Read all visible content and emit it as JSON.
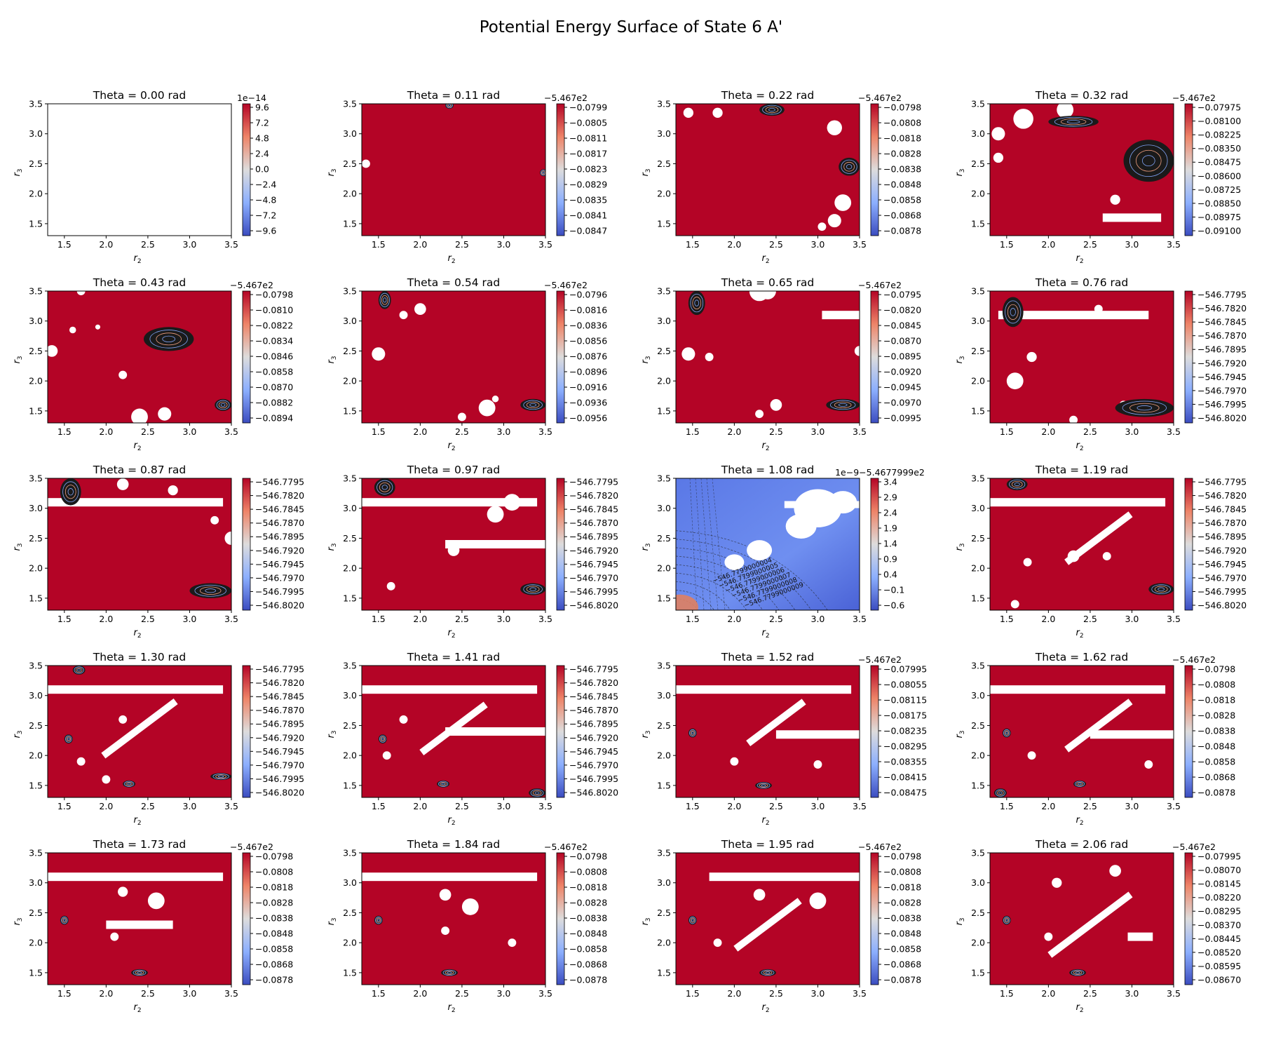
{
  "figure": {
    "title": "Potential Energy Surface of State 6 A'"
  },
  "chart_data": [
    {
      "type": "heatmap",
      "title": "Theta = 0.00 rad",
      "xlabel": "r",
      "xlabel_sub": "2",
      "ylabel": "r",
      "ylabel_sub": "3",
      "xlim": [
        1.3,
        3.5
      ],
      "ylim": [
        1.3,
        3.5
      ],
      "xticks": [
        "1.5",
        "2.0",
        "2.5",
        "3.0",
        "3.5"
      ],
      "yticks": [
        "1.5",
        "2.0",
        "2.5",
        "3.0",
        "3.5"
      ],
      "colorbar": {
        "offset": "1e−14",
        "ticks": [
          "9.6",
          "7.2",
          "4.8",
          "2.4",
          "0.0",
          "−2.4",
          "−4.8",
          "−7.2",
          "−9.6"
        ]
      },
      "fill": "empty",
      "features": []
    },
    {
      "type": "heatmap",
      "title": "Theta = 0.11 rad",
      "xlabel": "r",
      "xlabel_sub": "2",
      "ylabel": "r",
      "ylabel_sub": "3",
      "xlim": [
        1.3,
        3.5
      ],
      "ylim": [
        1.3,
        3.5
      ],
      "xticks": [
        "1.5",
        "2.0",
        "2.5",
        "3.0",
        "3.5"
      ],
      "yticks": [
        "1.5",
        "2.0",
        "2.5",
        "3.0",
        "3.5"
      ],
      "colorbar": {
        "offset": "−5.467e2",
        "ticks": [
          "−0.0799",
          "−0.0805",
          "−0.0811",
          "−0.0817",
          "−0.0823",
          "−0.0829",
          "−0.0835",
          "−0.0841",
          "−0.0847"
        ]
      },
      "fill": "red",
      "features": []
    },
    {
      "type": "heatmap",
      "title": "Theta = 0.22 rad",
      "xlabel": "r",
      "xlabel_sub": "2",
      "ylabel": "r",
      "ylabel_sub": "3",
      "xlim": [
        1.3,
        3.5
      ],
      "ylim": [
        1.3,
        3.5
      ],
      "xticks": [
        "1.5",
        "2.0",
        "2.5",
        "3.0",
        "3.5"
      ],
      "yticks": [
        "1.5",
        "2.0",
        "2.5",
        "3.0",
        "3.5"
      ],
      "colorbar": {
        "offset": "−5.467e2",
        "ticks": [
          "−0.0798",
          "−0.0808",
          "−0.0818",
          "−0.0828",
          "−0.0838",
          "−0.0848",
          "−0.0858",
          "−0.0868",
          "−0.0878"
        ]
      },
      "fill": "red",
      "features": []
    },
    {
      "type": "heatmap",
      "title": "Theta = 0.32 rad",
      "xlabel": "r",
      "xlabel_sub": "2",
      "ylabel": "r",
      "ylabel_sub": "3",
      "xlim": [
        1.3,
        3.5
      ],
      "ylim": [
        1.3,
        3.5
      ],
      "xticks": [
        "1.5",
        "2.0",
        "2.5",
        "3.0",
        "3.5"
      ],
      "yticks": [
        "1.5",
        "2.0",
        "2.5",
        "3.0",
        "3.5"
      ],
      "colorbar": {
        "offset": "−5.467e2",
        "ticks": [
          "−0.07975",
          "−0.08100",
          "−0.08225",
          "−0.08350",
          "−0.08475",
          "−0.08600",
          "−0.08725",
          "−0.08850",
          "−0.08975",
          "−0.09100"
        ]
      },
      "fill": "red",
      "features": []
    },
    {
      "type": "heatmap",
      "title": "Theta = 0.43 rad",
      "xlabel": "r",
      "xlabel_sub": "2",
      "ylabel": "r",
      "ylabel_sub": "3",
      "xlim": [
        1.3,
        3.5
      ],
      "ylim": [
        1.3,
        3.5
      ],
      "xticks": [
        "1.5",
        "2.0",
        "2.5",
        "3.0",
        "3.5"
      ],
      "yticks": [
        "1.5",
        "2.0",
        "2.5",
        "3.0",
        "3.5"
      ],
      "colorbar": {
        "offset": "−5.467e2",
        "ticks": [
          "−0.0798",
          "−0.0810",
          "−0.0822",
          "−0.0834",
          "−0.0846",
          "−0.0858",
          "−0.0870",
          "−0.0882",
          "−0.0894"
        ]
      },
      "fill": "red",
      "features": []
    },
    {
      "type": "heatmap",
      "title": "Theta = 0.54 rad",
      "xlabel": "r",
      "xlabel_sub": "2",
      "ylabel": "r",
      "ylabel_sub": "3",
      "xlim": [
        1.3,
        3.5
      ],
      "ylim": [
        1.3,
        3.5
      ],
      "xticks": [
        "1.5",
        "2.0",
        "2.5",
        "3.0",
        "3.5"
      ],
      "yticks": [
        "1.5",
        "2.0",
        "2.5",
        "3.0",
        "3.5"
      ],
      "colorbar": {
        "offset": "−5.467e2",
        "ticks": [
          "−0.0796",
          "−0.0816",
          "−0.0836",
          "−0.0856",
          "−0.0876",
          "−0.0896",
          "−0.0916",
          "−0.0936",
          "−0.0956"
        ]
      },
      "fill": "red",
      "features": []
    },
    {
      "type": "heatmap",
      "title": "Theta = 0.65 rad",
      "xlabel": "r",
      "xlabel_sub": "2",
      "ylabel": "r",
      "ylabel_sub": "3",
      "xlim": [
        1.3,
        3.5
      ],
      "ylim": [
        1.3,
        3.5
      ],
      "xticks": [
        "1.5",
        "2.0",
        "2.5",
        "3.0",
        "3.5"
      ],
      "yticks": [
        "1.5",
        "2.0",
        "2.5",
        "3.0",
        "3.5"
      ],
      "colorbar": {
        "offset": "−5.467e2",
        "ticks": [
          "−0.0795",
          "−0.0820",
          "−0.0845",
          "−0.0870",
          "−0.0895",
          "−0.0920",
          "−0.0945",
          "−0.0970",
          "−0.0995"
        ]
      },
      "fill": "red",
      "features": []
    },
    {
      "type": "heatmap",
      "title": "Theta = 0.76 rad",
      "xlabel": "r",
      "xlabel_sub": "2",
      "ylabel": "r",
      "ylabel_sub": "3",
      "xlim": [
        1.3,
        3.5
      ],
      "ylim": [
        1.3,
        3.5
      ],
      "xticks": [
        "1.5",
        "2.0",
        "2.5",
        "3.0",
        "3.5"
      ],
      "yticks": [
        "1.5",
        "2.0",
        "2.5",
        "3.0",
        "3.5"
      ],
      "colorbar": {
        "offset": "",
        "ticks": [
          "−546.7795",
          "−546.7820",
          "−546.7845",
          "−546.7870",
          "−546.7895",
          "−546.7920",
          "−546.7945",
          "−546.7970",
          "−546.7995",
          "−546.8020"
        ]
      },
      "fill": "red",
      "features": []
    },
    {
      "type": "heatmap",
      "title": "Theta = 0.87 rad",
      "xlabel": "r",
      "xlabel_sub": "2",
      "ylabel": "r",
      "ylabel_sub": "3",
      "xlim": [
        1.3,
        3.5
      ],
      "ylim": [
        1.3,
        3.5
      ],
      "xticks": [
        "1.5",
        "2.0",
        "2.5",
        "3.0",
        "3.5"
      ],
      "yticks": [
        "1.5",
        "2.0",
        "2.5",
        "3.0",
        "3.5"
      ],
      "colorbar": {
        "offset": "",
        "ticks": [
          "−546.7795",
          "−546.7820",
          "−546.7845",
          "−546.7870",
          "−546.7895",
          "−546.7920",
          "−546.7945",
          "−546.7970",
          "−546.7995",
          "−546.8020"
        ]
      },
      "fill": "red",
      "features": []
    },
    {
      "type": "heatmap",
      "title": "Theta = 0.97 rad",
      "xlabel": "r",
      "xlabel_sub": "2",
      "ylabel": "r",
      "ylabel_sub": "3",
      "xlim": [
        1.3,
        3.5
      ],
      "ylim": [
        1.3,
        3.5
      ],
      "xticks": [
        "1.5",
        "2.0",
        "2.5",
        "3.0",
        "3.5"
      ],
      "yticks": [
        "1.5",
        "2.0",
        "2.5",
        "3.0",
        "3.5"
      ],
      "colorbar": {
        "offset": "",
        "ticks": [
          "−546.7795",
          "−546.7820",
          "−546.7845",
          "−546.7870",
          "−546.7895",
          "−546.7920",
          "−546.7945",
          "−546.7970",
          "−546.7995",
          "−546.8020"
        ]
      },
      "fill": "red",
      "features": []
    },
    {
      "type": "heatmap",
      "title": "Theta = 1.08 rad",
      "xlabel": "r",
      "xlabel_sub": "2",
      "ylabel": "r",
      "ylabel_sub": "3",
      "xlim": [
        1.3,
        3.5
      ],
      "ylim": [
        1.3,
        3.5
      ],
      "xticks": [
        "1.5",
        "2.0",
        "2.5",
        "3.0",
        "3.5"
      ],
      "yticks": [
        "1.5",
        "2.0",
        "2.5",
        "3.0",
        "3.5"
      ],
      "colorbar": {
        "offset": "1e−9−5.4677999e2",
        "ticks": [
          "3.4",
          "2.9",
          "2.4",
          "1.9",
          "1.4",
          "0.9",
          "0.4",
          "−0.1",
          "−0.6"
        ]
      },
      "fill": "blue",
      "contour_labels": [
        "−546.7799000004",
        "−546.7799000005",
        "−546.7799000006",
        "−546.7799000007",
        "−546.7799000008",
        "−546.7799000009"
      ],
      "features": []
    },
    {
      "type": "heatmap",
      "title": "Theta = 1.19 rad",
      "xlabel": "r",
      "xlabel_sub": "2",
      "ylabel": "r",
      "ylabel_sub": "3",
      "xlim": [
        1.3,
        3.5
      ],
      "ylim": [
        1.3,
        3.5
      ],
      "xticks": [
        "1.5",
        "2.0",
        "2.5",
        "3.0",
        "3.5"
      ],
      "yticks": [
        "1.5",
        "2.0",
        "2.5",
        "3.0",
        "3.5"
      ],
      "colorbar": {
        "offset": "",
        "ticks": [
          "−546.7795",
          "−546.7820",
          "−546.7845",
          "−546.7870",
          "−546.7895",
          "−546.7920",
          "−546.7945",
          "−546.7970",
          "−546.7995",
          "−546.8020"
        ]
      },
      "fill": "red",
      "features": []
    },
    {
      "type": "heatmap",
      "title": "Theta = 1.30 rad",
      "xlabel": "r",
      "xlabel_sub": "2",
      "ylabel": "r",
      "ylabel_sub": "3",
      "xlim": [
        1.3,
        3.5
      ],
      "ylim": [
        1.3,
        3.5
      ],
      "xticks": [
        "1.5",
        "2.0",
        "2.5",
        "3.0",
        "3.5"
      ],
      "yticks": [
        "1.5",
        "2.0",
        "2.5",
        "3.0",
        "3.5"
      ],
      "colorbar": {
        "offset": "",
        "ticks": [
          "−546.7795",
          "−546.7820",
          "−546.7845",
          "−546.7870",
          "−546.7895",
          "−546.7920",
          "−546.7945",
          "−546.7970",
          "−546.7995",
          "−546.8020"
        ]
      },
      "fill": "red",
      "features": []
    },
    {
      "type": "heatmap",
      "title": "Theta = 1.41 rad",
      "xlabel": "r",
      "xlabel_sub": "2",
      "ylabel": "r",
      "ylabel_sub": "3",
      "xlim": [
        1.3,
        3.5
      ],
      "ylim": [
        1.3,
        3.5
      ],
      "xticks": [
        "1.5",
        "2.0",
        "2.5",
        "3.0",
        "3.5"
      ],
      "yticks": [
        "1.5",
        "2.0",
        "2.5",
        "3.0",
        "3.5"
      ],
      "colorbar": {
        "offset": "",
        "ticks": [
          "−546.7795",
          "−546.7820",
          "−546.7845",
          "−546.7870",
          "−546.7895",
          "−546.7920",
          "−546.7945",
          "−546.7970",
          "−546.7995",
          "−546.8020"
        ]
      },
      "fill": "red",
      "features": []
    },
    {
      "type": "heatmap",
      "title": "Theta = 1.52 rad",
      "xlabel": "r",
      "xlabel_sub": "2",
      "ylabel": "r",
      "ylabel_sub": "3",
      "xlim": [
        1.3,
        3.5
      ],
      "ylim": [
        1.3,
        3.5
      ],
      "xticks": [
        "1.5",
        "2.0",
        "2.5",
        "3.0",
        "3.5"
      ],
      "yticks": [
        "1.5",
        "2.0",
        "2.5",
        "3.0",
        "3.5"
      ],
      "colorbar": {
        "offset": "−5.467e2",
        "ticks": [
          "−0.07995",
          "−0.08055",
          "−0.08115",
          "−0.08175",
          "−0.08235",
          "−0.08295",
          "−0.08355",
          "−0.08415",
          "−0.08475"
        ]
      },
      "fill": "red",
      "features": []
    },
    {
      "type": "heatmap",
      "title": "Theta = 1.62 rad",
      "xlabel": "r",
      "xlabel_sub": "2",
      "ylabel": "r",
      "ylabel_sub": "3",
      "xlim": [
        1.3,
        3.5
      ],
      "ylim": [
        1.3,
        3.5
      ],
      "xticks": [
        "1.5",
        "2.0",
        "2.5",
        "3.0",
        "3.5"
      ],
      "yticks": [
        "1.5",
        "2.0",
        "2.5",
        "3.0",
        "3.5"
      ],
      "colorbar": {
        "offset": "−5.467e2",
        "ticks": [
          "−0.0798",
          "−0.0808",
          "−0.0818",
          "−0.0828",
          "−0.0838",
          "−0.0848",
          "−0.0858",
          "−0.0868",
          "−0.0878"
        ]
      },
      "fill": "red",
      "features": []
    },
    {
      "type": "heatmap",
      "title": "Theta = 1.73 rad",
      "xlabel": "r",
      "xlabel_sub": "2",
      "ylabel": "r",
      "ylabel_sub": "3",
      "xlim": [
        1.3,
        3.5
      ],
      "ylim": [
        1.3,
        3.5
      ],
      "xticks": [
        "1.5",
        "2.0",
        "2.5",
        "3.0",
        "3.5"
      ],
      "yticks": [
        "1.5",
        "2.0",
        "2.5",
        "3.0",
        "3.5"
      ],
      "colorbar": {
        "offset": "−5.467e2",
        "ticks": [
          "−0.0798",
          "−0.0808",
          "−0.0818",
          "−0.0828",
          "−0.0838",
          "−0.0848",
          "−0.0858",
          "−0.0868",
          "−0.0878"
        ]
      },
      "fill": "red",
      "features": []
    },
    {
      "type": "heatmap",
      "title": "Theta = 1.84 rad",
      "xlabel": "r",
      "xlabel_sub": "2",
      "ylabel": "r",
      "ylabel_sub": "3",
      "xlim": [
        1.3,
        3.5
      ],
      "ylim": [
        1.3,
        3.5
      ],
      "xticks": [
        "1.5",
        "2.0",
        "2.5",
        "3.0",
        "3.5"
      ],
      "yticks": [
        "1.5",
        "2.0",
        "2.5",
        "3.0",
        "3.5"
      ],
      "colorbar": {
        "offset": "−5.467e2",
        "ticks": [
          "−0.0798",
          "−0.0808",
          "−0.0818",
          "−0.0828",
          "−0.0838",
          "−0.0848",
          "−0.0858",
          "−0.0868",
          "−0.0878"
        ]
      },
      "fill": "red",
      "features": []
    },
    {
      "type": "heatmap",
      "title": "Theta = 1.95 rad",
      "xlabel": "r",
      "xlabel_sub": "2",
      "ylabel": "r",
      "ylabel_sub": "3",
      "xlim": [
        1.3,
        3.5
      ],
      "ylim": [
        1.3,
        3.5
      ],
      "xticks": [
        "1.5",
        "2.0",
        "2.5",
        "3.0",
        "3.5"
      ],
      "yticks": [
        "1.5",
        "2.0",
        "2.5",
        "3.0",
        "3.5"
      ],
      "colorbar": {
        "offset": "−5.467e2",
        "ticks": [
          "−0.0798",
          "−0.0808",
          "−0.0818",
          "−0.0828",
          "−0.0838",
          "−0.0848",
          "−0.0858",
          "−0.0868",
          "−0.0878"
        ]
      },
      "fill": "red",
      "features": []
    },
    {
      "type": "heatmap",
      "title": "Theta = 2.06 rad",
      "xlabel": "r",
      "xlabel_sub": "2",
      "ylabel": "r",
      "ylabel_sub": "3",
      "xlim": [
        1.3,
        3.5
      ],
      "ylim": [
        1.3,
        3.5
      ],
      "xticks": [
        "1.5",
        "2.0",
        "2.5",
        "3.0",
        "3.5"
      ],
      "yticks": [
        "1.5",
        "2.0",
        "2.5",
        "3.0",
        "3.5"
      ],
      "colorbar": {
        "offset": "−5.467e2",
        "ticks": [
          "−0.07995",
          "−0.08070",
          "−0.08145",
          "−0.08220",
          "−0.08295",
          "−0.08370",
          "−0.08445",
          "−0.08520",
          "−0.08595",
          "−0.08670"
        ]
      },
      "fill": "red",
      "features": []
    }
  ]
}
